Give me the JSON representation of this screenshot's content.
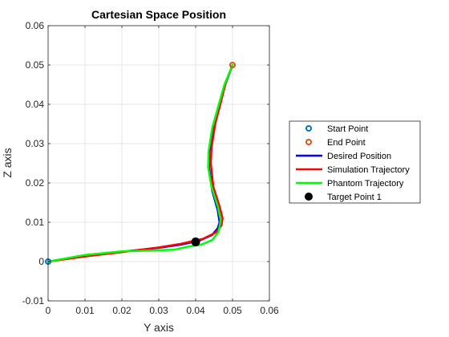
{
  "chart_data": {
    "type": "line",
    "title": "Cartesian Space Position",
    "xlabel": "Y axis",
    "ylabel": "Z axis",
    "xlim": [
      0,
      0.06
    ],
    "ylim": [
      -0.01,
      0.06
    ],
    "xticks": [
      "0",
      "0.01",
      "0.02",
      "0.03",
      "0.04",
      "0.05",
      "0.06"
    ],
    "yticks": [
      "-0.01",
      "0",
      "0.01",
      "0.02",
      "0.03",
      "0.04",
      "0.05",
      "0.06"
    ],
    "grid": true,
    "legend_position": "right",
    "series": [
      {
        "name": "Start Point",
        "kind": "marker-open-circle",
        "color": "#0072BD",
        "x": [
          0
        ],
        "y": [
          0
        ]
      },
      {
        "name": "End Point",
        "kind": "marker-open-circle",
        "color": "#D95319",
        "x": [
          0.05
        ],
        "y": [
          0.05
        ]
      },
      {
        "name": "Desired Position",
        "kind": "line",
        "color": "#0000FF",
        "x": [
          0,
          0.01,
          0.02,
          0.03,
          0.036,
          0.041,
          0.0445,
          0.046,
          0.0465,
          0.046,
          0.0445,
          0.0436,
          0.0437,
          0.0447,
          0.0462,
          0.048,
          0.05
        ],
        "y": [
          0,
          0.0015,
          0.0025,
          0.0035,
          0.0043,
          0.0053,
          0.0068,
          0.0085,
          0.01,
          0.013,
          0.018,
          0.024,
          0.028,
          0.034,
          0.039,
          0.045,
          0.05
        ]
      },
      {
        "name": "Simulation Trajectory",
        "kind": "line",
        "color": "#FF0000",
        "x": [
          0,
          0.01,
          0.02,
          0.03,
          0.036,
          0.042,
          0.0455,
          0.047,
          0.0473,
          0.0465,
          0.0448,
          0.0441,
          0.0443,
          0.0453,
          0.0467,
          0.0483,
          0.05
        ],
        "y": [
          0,
          0.0013,
          0.0024,
          0.0036,
          0.0045,
          0.0058,
          0.0074,
          0.0092,
          0.011,
          0.014,
          0.019,
          0.025,
          0.029,
          0.035,
          0.04,
          0.046,
          0.05
        ]
      },
      {
        "name": "Phantom Trajectory",
        "kind": "line",
        "color": "#00FF00",
        "x": [
          0,
          0.01,
          0.02,
          0.028,
          0.034,
          0.038,
          0.0415,
          0.0445,
          0.0462,
          0.0468,
          0.046,
          0.0443,
          0.0434,
          0.0435,
          0.0445,
          0.046,
          0.0478,
          0.05
        ],
        "y": [
          0,
          0.0017,
          0.0026,
          0.0028,
          0.003,
          0.0038,
          0.0043,
          0.0055,
          0.0075,
          0.0105,
          0.014,
          0.019,
          0.024,
          0.028,
          0.034,
          0.039,
          0.045,
          0.05
        ]
      },
      {
        "name": "Target Point 1",
        "kind": "marker-filled-circle",
        "color": "#000000",
        "x": [
          0.04
        ],
        "y": [
          0.005
        ]
      }
    ]
  }
}
